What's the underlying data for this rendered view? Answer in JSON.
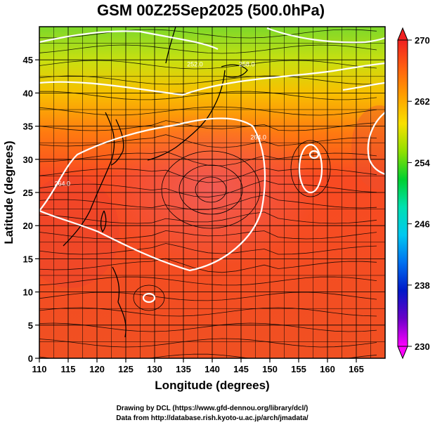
{
  "chart_data": {
    "type": "contour-map",
    "title": "GSM 00Z25Sep2025 (500.0hPa)",
    "xlabel": "Longitude (degrees)",
    "ylabel": "Latitude  (degrees)",
    "xlim": [
      110,
      170
    ],
    "ylim": [
      0,
      50
    ],
    "x_ticks": [
      110,
      115,
      120,
      125,
      130,
      135,
      140,
      145,
      150,
      155,
      160,
      165
    ],
    "y_ticks": [
      0,
      5,
      10,
      15,
      20,
      25,
      30,
      35,
      40,
      45
    ],
    "colorbar": {
      "min": 230,
      "max": 270,
      "ticks": [
        230,
        238,
        246,
        254,
        262,
        270
      ],
      "colors": [
        "#ff00ff",
        "#6a00c8",
        "#0018c8",
        "#0070f0",
        "#00c8f0",
        "#00e0b0",
        "#00d030",
        "#90e000",
        "#f8e000",
        "#ffa000",
        "#ff6010",
        "#f02020"
      ]
    },
    "contour_labels": [
      {
        "text": "252.0",
        "lon": 137,
        "lat": 44
      },
      {
        "text": "258.0",
        "lon": 146,
        "lat": 44
      },
      {
        "text": "264.0",
        "lon": 114,
        "lat": 26
      },
      {
        "text": "264.0",
        "lon": 148,
        "lat": 33
      }
    ],
    "credits": {
      "line1": "Drawing by DCL (https://www.gfd-dennou.org/library/dcl/)",
      "line2": "Data from http://database.rish.kyoto-u.ac.jp/arch/jmadata/"
    }
  }
}
